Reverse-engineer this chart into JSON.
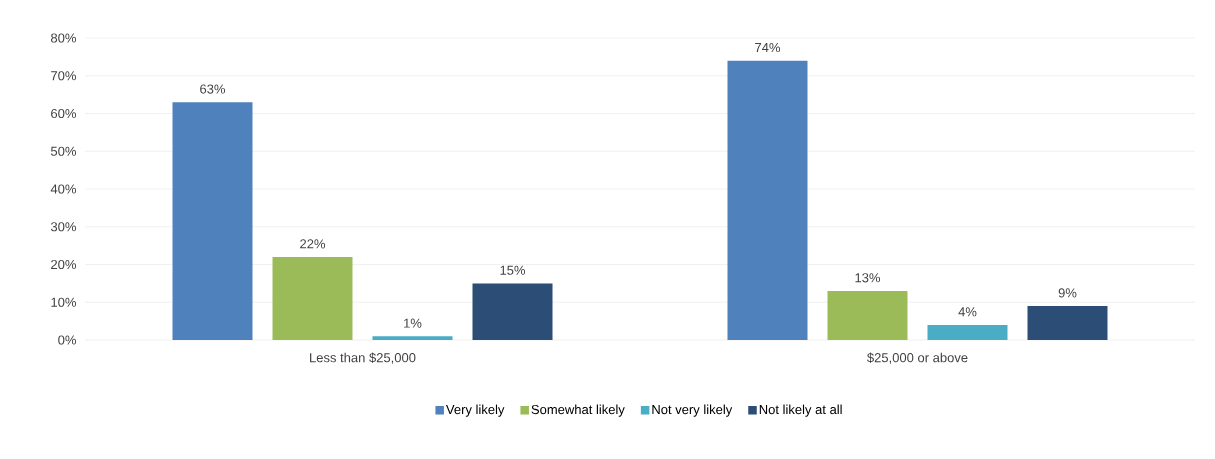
{
  "chart_data": {
    "type": "bar",
    "categories": [
      "Less than $25,000",
      "$25,000 or above"
    ],
    "series": [
      {
        "name": "Very likely",
        "color": "#4f81bd",
        "values": [
          63,
          74
        ],
        "value_labels": [
          "63%",
          "74%"
        ]
      },
      {
        "name": "Somewhat likely",
        "color": "#9bbb59",
        "values": [
          22,
          13
        ],
        "value_labels": [
          "22%",
          "13%"
        ]
      },
      {
        "name": "Not very likely",
        "color": "#4bacc6",
        "values": [
          1,
          4
        ],
        "value_labels": [
          "1%",
          "4%"
        ]
      },
      {
        "name": "Not likely at all",
        "color": "#2c4d75",
        "values": [
          15,
          9
        ],
        "value_labels": [
          "15%",
          "9%"
        ]
      }
    ],
    "ylim": [
      0,
      80
    ],
    "yticks": [
      {
        "value": 0,
        "label": "0%"
      },
      {
        "value": 10,
        "label": "10%"
      },
      {
        "value": 20,
        "label": "20%"
      },
      {
        "value": 30,
        "label": "30%"
      },
      {
        "value": 40,
        "label": "40%"
      },
      {
        "value": 50,
        "label": "50%"
      },
      {
        "value": 60,
        "label": "60%"
      },
      {
        "value": 70,
        "label": "70%"
      },
      {
        "value": 80,
        "label": "80%"
      }
    ],
    "grid": "y",
    "legend": "bottom"
  }
}
